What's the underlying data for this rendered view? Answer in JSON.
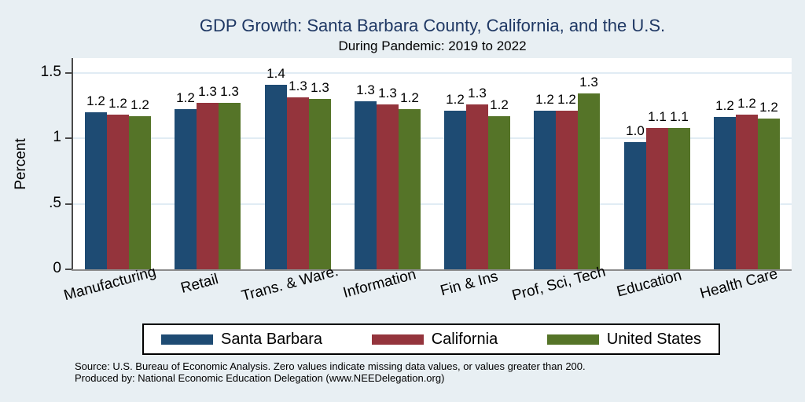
{
  "page": {
    "source_line1": "Source: U.S. Bureau of Economic Analysis. Zero values indicate missing data values, or values greater than 200.",
    "source_line2": "Produced by: National Economic Education Delegation (www.NEEDelegation.org)"
  },
  "colors": {
    "background": "#e8eff3",
    "plot_background": "#ffffff",
    "title_text": "#1f3864",
    "gridline": "#e1ecf4",
    "y_axis": "#4a4a4a",
    "x_axis": "#8c8c8c",
    "santa_barbara": "#1e4b73",
    "california": "#94343c",
    "united_states": "#557428"
  },
  "chart_data": {
    "type": "bar",
    "title": "GDP Growth: Santa Barbara County, California, and the U.S.",
    "subtitle": "During Pandemic: 2019 to 2022",
    "ylabel": "Percent",
    "xlabel": "",
    "ylim": [
      0,
      1.6
    ],
    "grid": true,
    "legend_position": "bottom",
    "categories": [
      "Manufacturing",
      "Retail",
      "Trans. & Ware.",
      "Information",
      "Fin & Ins",
      "Prof, Sci, Tech",
      "Education",
      "Health Care"
    ],
    "yticks": [
      {
        "value": 0,
        "label": "0"
      },
      {
        "value": 0.5,
        "label": ".5"
      },
      {
        "value": 1,
        "label": "1"
      },
      {
        "value": 1.5,
        "label": "1.5"
      }
    ],
    "series": [
      {
        "name": "Santa Barbara",
        "color_key": "santa_barbara",
        "values": [
          1.2,
          1.22,
          1.41,
          1.28,
          1.21,
          1.21,
          0.97,
          1.16
        ],
        "labels": [
          "1.2",
          "1.2",
          "1.4",
          "1.3",
          "1.2",
          "1.2",
          "1.0",
          "1.2"
        ]
      },
      {
        "name": "California",
        "color_key": "california",
        "values": [
          1.18,
          1.27,
          1.31,
          1.26,
          1.26,
          1.21,
          1.08,
          1.18
        ],
        "labels": [
          "1.2",
          "1.3",
          "1.3",
          "1.3",
          "1.3",
          "1.2",
          "1.1",
          "1.2"
        ]
      },
      {
        "name": "United States",
        "color_key": "united_states",
        "values": [
          1.17,
          1.27,
          1.3,
          1.22,
          1.17,
          1.34,
          1.08,
          1.15
        ],
        "labels": [
          "1.2",
          "1.3",
          "1.3",
          "1.2",
          "1.2",
          "1.3",
          "1.1",
          "1.2"
        ]
      }
    ]
  }
}
